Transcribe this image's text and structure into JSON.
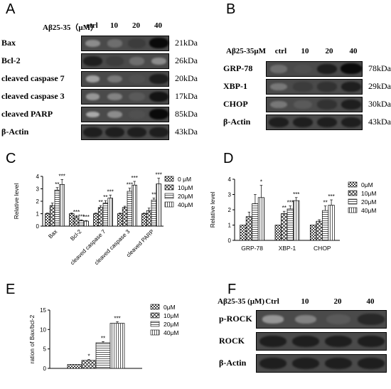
{
  "panels": {
    "A": {
      "letter": "A",
      "treatment": "Aβ25-35（μM）",
      "lanes": [
        "ctrl",
        "10",
        "20",
        "40"
      ],
      "rows": [
        {
          "label": "Bax",
          "kda": "21kDa",
          "intensity": [
            0.3,
            0.45,
            0.7,
            0.95
          ]
        },
        {
          "label": "Bcl-2",
          "kda": "26kDa",
          "intensity": [
            0.85,
            0.7,
            0.45,
            0.3
          ]
        },
        {
          "label": "cleaved caspase 7",
          "kda": "20kDa",
          "intensity": [
            0.2,
            0.4,
            0.6,
            0.85
          ]
        },
        {
          "label": "cleaved caspase 3",
          "kda": "17kDa",
          "intensity": [
            0.25,
            0.35,
            0.55,
            0.9
          ]
        },
        {
          "label": "cleaved  PARP",
          "kda": "85kDa",
          "intensity": [
            0.15,
            0.3,
            0.6,
            0.95
          ]
        },
        {
          "label": "β-Actin",
          "kda": "43kDa",
          "intensity": [
            0.85,
            0.85,
            0.85,
            0.85
          ]
        }
      ]
    },
    "B": {
      "letter": "B",
      "treatment": "Aβ25-35μM",
      "lanes": [
        "ctrl",
        "10",
        "20",
        "40"
      ],
      "rows": [
        {
          "label": "GRP-78",
          "kda": "78kDa",
          "intensity": [
            0.45,
            0.6,
            0.85,
            0.95
          ]
        },
        {
          "label": "XBP-1",
          "kda": "29kDa",
          "intensity": [
            0.4,
            0.7,
            0.75,
            0.85
          ]
        },
        {
          "label": "CHOP",
          "kda": "30kDa",
          "intensity": [
            0.4,
            0.55,
            0.75,
            0.85
          ]
        },
        {
          "label": "β-Actin",
          "kda": "43kDa",
          "intensity": [
            0.85,
            0.85,
            0.85,
            0.85
          ]
        }
      ]
    },
    "F": {
      "letter": "F",
      "treatment": "Aβ25-35 (μM)",
      "lanes": [
        "Ctrl",
        "10",
        "20",
        "40"
      ],
      "rows": [
        {
          "label": "p-ROCK",
          "kda": "",
          "intensity": [
            0.25,
            0.35,
            0.55,
            0.8
          ]
        },
        {
          "label": "ROCK",
          "kda": "",
          "intensity": [
            0.85,
            0.85,
            0.85,
            0.85
          ]
        },
        {
          "label": "β-Actin",
          "kda": "",
          "intensity": [
            0.85,
            0.85,
            0.85,
            0.85
          ]
        }
      ]
    }
  },
  "chart_data": [
    {
      "id": "C",
      "letter": "C",
      "type": "bar",
      "ylabel": "Relative level",
      "ylim": [
        0,
        4
      ],
      "yticks": [
        0,
        1,
        2,
        3,
        4
      ],
      "categories": [
        "Bax",
        "Bcl-2",
        "cleaved caspase 7",
        "cleaved caspase 3",
        "cleaved PARP"
      ],
      "legend": [
        "0 μM",
        "10μM",
        "20μM",
        "40μM"
      ],
      "legend_position": "right",
      "series": [
        {
          "name": "0 μM",
          "values": [
            1.0,
            1.0,
            1.0,
            1.0,
            1.0
          ],
          "errors": [
            0.05,
            0.05,
            0.05,
            0.05,
            0.05
          ]
        },
        {
          "name": "10μM",
          "values": [
            1.65,
            0.75,
            1.5,
            1.5,
            1.25
          ],
          "errors": [
            0.2,
            0.1,
            0.15,
            0.1,
            0.2
          ]
        },
        {
          "name": "20μM",
          "values": [
            2.9,
            0.45,
            1.85,
            2.8,
            2.1
          ],
          "errors": [
            0.2,
            0.05,
            0.2,
            0.25,
            0.15
          ]
        },
        {
          "name": "40μM",
          "values": [
            3.35,
            0.4,
            2.25,
            3.3,
            3.4
          ],
          "errors": [
            0.4,
            0.05,
            0.25,
            0.3,
            0.45
          ]
        }
      ],
      "significance": [
        [
          "",
          "",
          "**",
          "***"
        ],
        [
          "",
          "***",
          "***",
          "***"
        ],
        [
          "",
          "**",
          "**",
          "***"
        ],
        [
          "",
          "",
          "***",
          "***"
        ],
        [
          "",
          "",
          "**",
          "***"
        ]
      ]
    },
    {
      "id": "D",
      "letter": "D",
      "type": "bar",
      "ylabel": "Relative level",
      "ylim": [
        0,
        4
      ],
      "yticks": [
        0,
        1,
        2,
        3,
        4
      ],
      "categories": [
        "GRP-78",
        "XBP-1",
        "CHOP"
      ],
      "legend": [
        "0μM",
        "10μM",
        "20μM",
        "40μM"
      ],
      "legend_position": "right",
      "series": [
        {
          "name": "0μM",
          "values": [
            1.0,
            1.0,
            1.0
          ],
          "errors": [
            0.0,
            0.0,
            0.0
          ]
        },
        {
          "name": "10μM",
          "values": [
            1.55,
            1.75,
            1.25
          ],
          "errors": [
            0.3,
            0.15,
            0.1
          ]
        },
        {
          "name": "20μM",
          "values": [
            2.4,
            2.05,
            1.95
          ],
          "errors": [
            0.6,
            0.2,
            0.3
          ]
        },
        {
          "name": "40μM",
          "values": [
            2.8,
            2.6,
            2.3
          ],
          "errors": [
            0.8,
            0.2,
            0.35
          ]
        }
      ],
      "significance": [
        [
          "",
          "",
          "",
          "*"
        ],
        [
          "",
          "**",
          "***",
          "***"
        ],
        [
          "",
          "",
          "**",
          "***"
        ]
      ]
    },
    {
      "id": "E",
      "letter": "E",
      "type": "bar",
      "ylabel": "ration of Bax/bcl-2",
      "ylim": [
        0,
        15
      ],
      "yticks": [
        0,
        5,
        10,
        15
      ],
      "categories": [
        ""
      ],
      "legend": [
        "0μM",
        "10μM",
        "20μM",
        "40μM"
      ],
      "legend_position": "right",
      "series": [
        {
          "name": "0μM",
          "values": [
            1.0
          ],
          "errors": [
            0.0
          ]
        },
        {
          "name": "10μM",
          "values": [
            2.05
          ],
          "errors": [
            0.2
          ]
        },
        {
          "name": "20μM",
          "values": [
            6.6
          ],
          "errors": [
            0.3
          ]
        },
        {
          "name": "40μM",
          "values": [
            11.6
          ],
          "errors": [
            0.4
          ]
        }
      ],
      "significance": [
        [
          "",
          "*",
          "**",
          "***"
        ]
      ]
    }
  ]
}
